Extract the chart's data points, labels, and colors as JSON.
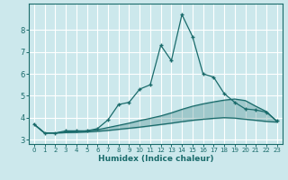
{
  "xlabel": "Humidex (Indice chaleur)",
  "bg_color": "#cce8ec",
  "grid_color": "#b0d0d8",
  "line_color": "#1a6b6b",
  "xlim": [
    -0.5,
    23.5
  ],
  "ylim": [
    2.8,
    9.2
  ],
  "yticks": [
    3,
    4,
    5,
    6,
    7,
    8
  ],
  "xticks": [
    0,
    1,
    2,
    3,
    4,
    5,
    6,
    7,
    8,
    9,
    10,
    11,
    12,
    13,
    14,
    15,
    16,
    17,
    18,
    19,
    20,
    21,
    22,
    23
  ],
  "curve1_x": [
    0,
    1,
    2,
    3,
    4,
    5,
    6,
    7,
    8,
    9,
    10,
    11,
    12,
    13,
    14,
    15,
    16,
    17,
    18,
    19,
    20,
    21,
    22,
    23
  ],
  "curve1_y": [
    3.7,
    3.3,
    3.3,
    3.4,
    3.4,
    3.4,
    3.5,
    3.9,
    4.6,
    4.7,
    5.3,
    5.5,
    7.3,
    6.6,
    8.7,
    7.7,
    6.0,
    5.85,
    5.1,
    4.7,
    4.4,
    4.35,
    4.25,
    3.85
  ],
  "curve2_x": [
    0,
    1,
    2,
    3,
    4,
    5,
    6,
    7,
    8,
    9,
    10,
    11,
    12,
    13,
    14,
    15,
    16,
    17,
    18,
    19,
    20,
    21,
    22,
    23
  ],
  "curve2_y": [
    3.7,
    3.3,
    3.3,
    3.35,
    3.36,
    3.4,
    3.45,
    3.55,
    3.65,
    3.75,
    3.87,
    3.97,
    4.08,
    4.22,
    4.38,
    4.52,
    4.63,
    4.72,
    4.8,
    4.85,
    4.78,
    4.52,
    4.28,
    3.82
  ],
  "curve3_x": [
    0,
    1,
    2,
    3,
    4,
    5,
    6,
    7,
    8,
    9,
    10,
    11,
    12,
    13,
    14,
    15,
    16,
    17,
    18,
    19,
    20,
    21,
    22,
    23
  ],
  "curve3_y": [
    3.7,
    3.3,
    3.3,
    3.32,
    3.33,
    3.35,
    3.38,
    3.42,
    3.47,
    3.52,
    3.57,
    3.63,
    3.69,
    3.75,
    3.82,
    3.88,
    3.93,
    3.97,
    4.0,
    3.98,
    3.93,
    3.88,
    3.83,
    3.8
  ]
}
